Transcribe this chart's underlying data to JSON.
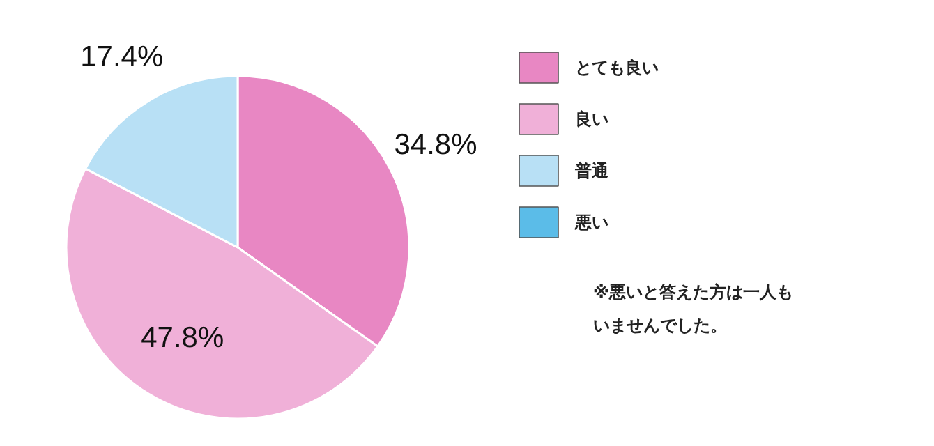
{
  "chart_data": {
    "type": "pie",
    "categories": [
      "とても良い",
      "良い",
      "普通",
      "悪い"
    ],
    "values": [
      34.8,
      47.8,
      17.4,
      0
    ],
    "value_labels": [
      "34.8%",
      "47.8%",
      "17.4%",
      null
    ],
    "colors": [
      "#e887c3",
      "#f0b0d8",
      "#b8e0f5",
      "#5bbce8"
    ],
    "legend": "right",
    "annotations": [
      "※悪いと答えた方は一人もいませんでした。"
    ]
  }
}
